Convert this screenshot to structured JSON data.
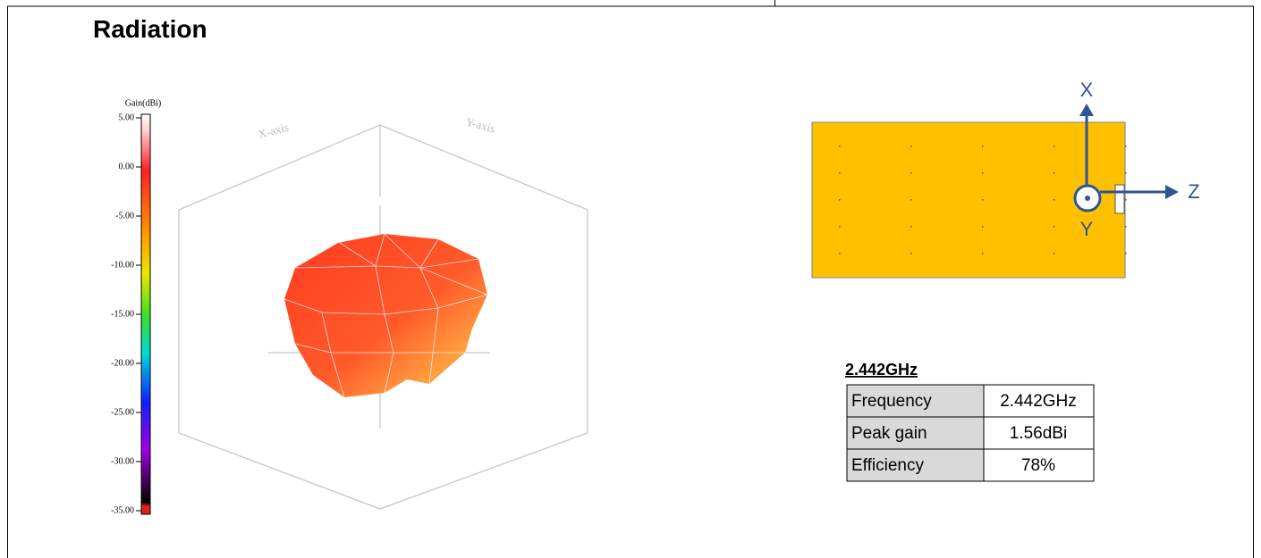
{
  "header": {
    "title": "Radiation"
  },
  "plot": {
    "colorbar_label": "Gain(dBi)",
    "colorbar_ticks": [
      "5.00",
      "0.00",
      "-5.00",
      "-10.00",
      "-15.00",
      "-20.00",
      "-25.00",
      "-30.00",
      "-35.00"
    ],
    "axis_labels": [
      "X-axis",
      "Y-axis"
    ]
  },
  "orientation": {
    "labels": [
      "X",
      "Z",
      "Y"
    ]
  },
  "table": {
    "title": "2.442GHz",
    "rows": [
      [
        "Frequency",
        "2.442GHz"
      ],
      [
        "Peak gain",
        "1.56dBi"
      ],
      [
        "Efficiency",
        "78%"
      ]
    ]
  }
}
